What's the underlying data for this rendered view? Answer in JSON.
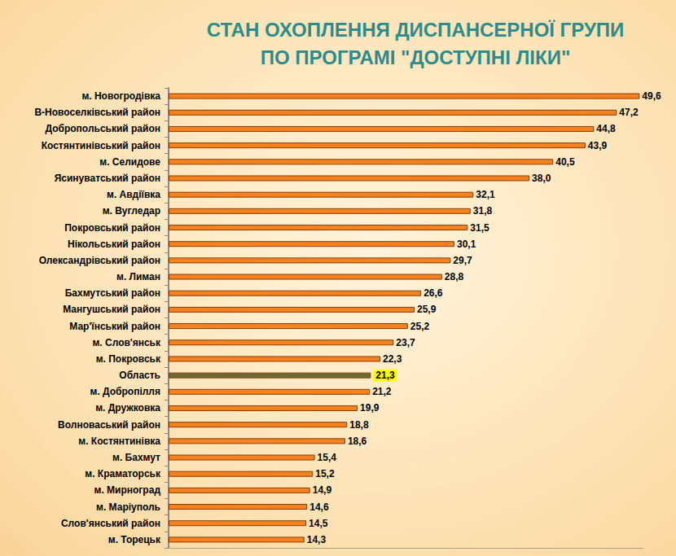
{
  "chart_data": {
    "type": "bar",
    "title": "СТАН ОХОПЛЕННЯ ДИСПАНСЕРНОЇ ГРУПИ ПО ПРОГРАМІ \"ДОСТУПНІ ЛІКИ\"",
    "orientation": "horizontal",
    "categories": [
      "м. Новогродівка",
      "В-Новоселківський район",
      "Добропольський район",
      "Костянтинівський район",
      "м. Селидове",
      "Ясинуватський район",
      "м. Авдіївка",
      "м. Вугледар",
      "Покровський район",
      "Нікольський район",
      "Олександрівський район",
      "м. Лиман",
      "Бахмутський район",
      "Мангушський район",
      "Мар'їнський район",
      "м. Слов'янськ",
      "м. Покровськ",
      "Область",
      "м. Добропілля",
      "м. Дружковка",
      "Волноваський район",
      "м. Костянтинівка",
      "м. Бахмут",
      "м. Краматорськ",
      "м. Мирноград",
      "м. Маріуполь",
      "Слов'янський район",
      "м. Торецьк"
    ],
    "values": [
      49.6,
      47.2,
      44.8,
      43.9,
      40.5,
      38.0,
      32.1,
      31.8,
      31.5,
      30.1,
      29.7,
      28.8,
      26.6,
      25.9,
      25.2,
      23.7,
      22.3,
      21.3,
      21.2,
      19.9,
      18.8,
      18.6,
      15.4,
      15.2,
      14.9,
      14.6,
      14.5,
      14.3
    ],
    "value_labels": [
      "49,6",
      "47,2",
      "44,8",
      "43,9",
      "40,5",
      "38,0",
      "32,1",
      "31,8",
      "31,5",
      "30,1",
      "29,7",
      "28,8",
      "26,6",
      "25,9",
      "25,2",
      "23,7",
      "22,3",
      "21,3",
      "21,2",
      "19,9",
      "18,8",
      "18,6",
      "15,4",
      "15,2",
      "14,9",
      "14,6",
      "14,5",
      "14,3"
    ],
    "colors": [
      "#f58220",
      "#f58220",
      "#f58220",
      "#f58220",
      "#f58220",
      "#f58220",
      "#f58220",
      "#f58220",
      "#f58220",
      "#f58220",
      "#f58220",
      "#f58220",
      "#f58220",
      "#f58220",
      "#f58220",
      "#f58220",
      "#f58220",
      "#6b6b35",
      "#f58220",
      "#f58220",
      "#f58220",
      "#f58220",
      "#f58220",
      "#f58220",
      "#f58220",
      "#f58220",
      "#f58220",
      "#f58220"
    ],
    "xlim": [
      0,
      50
    ],
    "data_labels": true,
    "tick_labels": "y",
    "grid": false
  }
}
